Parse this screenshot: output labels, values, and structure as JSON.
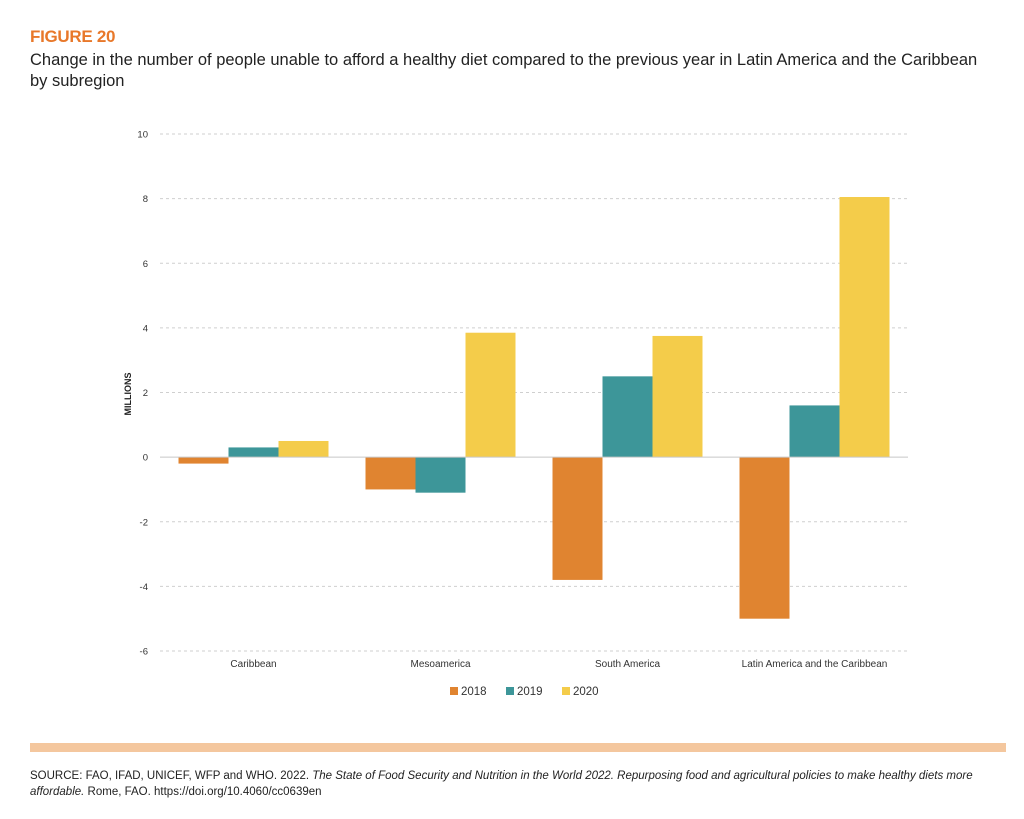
{
  "figure": {
    "label": "FIGURE 20",
    "title": "Change in the number of people unable to afford a healthy diet compared to the previous year in Latin America and the Caribbean by subregion"
  },
  "chart_data": {
    "type": "bar",
    "title": "Change in the number of people unable to afford a healthy diet compared to the previous year in Latin America and the Caribbean by subregion",
    "xlabel": "",
    "ylabel": "MILLIONS",
    "ylim": [
      -6,
      10
    ],
    "yticks": [
      10,
      8,
      6,
      4,
      2,
      0,
      -2,
      -4,
      -6
    ],
    "grid": true,
    "legend_position": "bottom",
    "categories": [
      "Caribbean",
      "Mesoamerica",
      "South America",
      "Latin America and the Caribbean"
    ],
    "series": [
      {
        "name": "2018",
        "color": "#e08430",
        "values": [
          -0.2,
          -1.0,
          -3.8,
          -5.0
        ]
      },
      {
        "name": "2019",
        "color": "#3d9699",
        "values": [
          0.3,
          -1.1,
          2.5,
          1.6
        ]
      },
      {
        "name": "2020",
        "color": "#f4cc4a",
        "values": [
          0.5,
          3.85,
          3.75,
          8.05
        ]
      }
    ]
  },
  "source": {
    "prefix": "SOURCE:  FAO, IFAD, UNICEF, WFP and WHO. 2022. ",
    "italic": "The State of Food Security and Nutrition in the World 2022. Repurposing food and agricultural policies to make healthy diets more affordable.",
    "suffix": " Rome, FAO. https://doi.org/10.4060/cc0639en"
  },
  "colors": {
    "accent": "#e8782a",
    "source_bar": "#f4c79e",
    "grid": "#cfcfcf"
  }
}
